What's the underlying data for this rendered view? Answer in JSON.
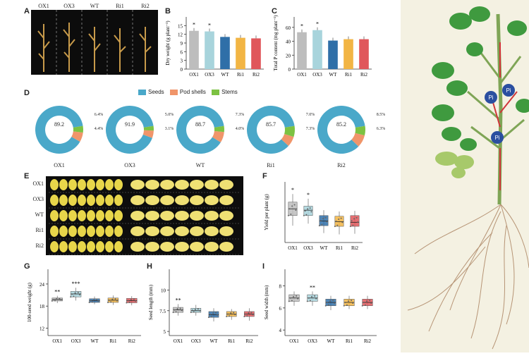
{
  "colors": {
    "OX1": "#bdbdbd",
    "OX3": "#a8d4dc",
    "WT": "#2f6fa8",
    "Ri1": "#f2b544",
    "Ri2": "#e0575b",
    "seeds": "#4aa8c9",
    "pod_shells": "#f0956a",
    "stems": "#7cc242"
  },
  "panel_letters": [
    "A",
    "B",
    "C",
    "D",
    "E",
    "F",
    "G",
    "H",
    "I"
  ],
  "panel_a": {
    "labels": [
      "OX1",
      "OX3",
      "WT",
      "Ri1",
      "Ri2"
    ]
  },
  "legend": {
    "seeds": "Seeds",
    "pod_shells": "Pod shells",
    "stems": "Stems"
  },
  "donuts": [
    {
      "name": "OX1",
      "seeds": "89.2",
      "pod": "6.4%",
      "stem": "4.4%"
    },
    {
      "name": "OX3",
      "seeds": "91.9",
      "pod": "5.0%",
      "stem": "3.1%"
    },
    {
      "name": "WT",
      "seeds": "88.7",
      "pod": "7.3%",
      "stem": "4.0%"
    },
    {
      "name": "Ri1",
      "seeds": "85.7",
      "pod": "7.0%",
      "stem": "7.3%"
    },
    {
      "name": "Ri2",
      "seeds": "85.2",
      "pod": "8.5%",
      "stem": "6.3%"
    }
  ],
  "panel_e": {
    "labels": [
      "OX1",
      "OX3",
      "WT",
      "Ri1",
      "Ri2"
    ]
  },
  "plant": {
    "labels": [
      "Pi",
      "Pi",
      "Pi"
    ]
  },
  "chart_data": [
    {
      "id": "B",
      "type": "bar",
      "categories": [
        "OX1",
        "OX3",
        "WT",
        "Ri1",
        "Ri2"
      ],
      "values": [
        13.2,
        13.0,
        11.1,
        10.8,
        10.6
      ],
      "ylabel": "Dry weight (g plant⁻¹)",
      "yticks": [
        0,
        3,
        6,
        9,
        12,
        15
      ],
      "ylim": [
        0,
        18
      ],
      "sig": [
        "*",
        "*",
        "",
        "",
        ""
      ]
    },
    {
      "id": "C",
      "type": "bar",
      "categories": [
        "OX1",
        "OX3",
        "WT",
        "Ri1",
        "Ri2"
      ],
      "values": [
        53,
        56,
        41,
        43,
        43
      ],
      "ylabel": "Total P content (mg plant⁻¹)",
      "yticks": [
        0,
        20,
        40,
        60
      ],
      "ylim": [
        0,
        75
      ],
      "sig": [
        "*",
        "*",
        "",
        "",
        ""
      ]
    },
    {
      "id": "F",
      "type": "box",
      "categories": [
        "OX1",
        "OX3",
        "WT",
        "Ri1",
        "Ri2"
      ],
      "values": [
        [
          4.5,
          6.0,
          7.0,
          8.0,
          9.2
        ],
        [
          4.8,
          6.0,
          6.8,
          7.4,
          8.5
        ],
        [
          3.4,
          4.5,
          5.2,
          6.0,
          6.8
        ],
        [
          3.2,
          4.4,
          5.1,
          5.9,
          6.6
        ],
        [
          3.3,
          4.4,
          5.0,
          6.0,
          6.7
        ]
      ],
      "ylabel": "Yield per plant (g)",
      "ylim": [
        2,
        11
      ],
      "sig": [
        "*",
        "*",
        "",
        "",
        ""
      ]
    },
    {
      "id": "G",
      "type": "box",
      "categories": [
        "OX1",
        "OX3",
        "WT",
        "Ri1",
        "Ri2"
      ],
      "values": [
        [
          18.8,
          19.4,
          19.8,
          20.2,
          20.8
        ],
        [
          19.5,
          20.5,
          21.3,
          22.0,
          23.0
        ],
        [
          18.5,
          19.0,
          19.5,
          20.0,
          20.6
        ],
        [
          18.3,
          19.0,
          19.6,
          20.2,
          20.9
        ],
        [
          18.2,
          18.9,
          19.5,
          20.1,
          20.7
        ]
      ],
      "ylabel": "100-seed weight (g)",
      "yticks": [
        12,
        18,
        24
      ],
      "ylim": [
        10,
        28
      ],
      "sig": [
        "**",
        "***",
        "",
        "",
        ""
      ]
    },
    {
      "id": "H",
      "type": "box",
      "categories": [
        "OX1",
        "OX3",
        "WT",
        "Ri1",
        "Ri2"
      ],
      "values": [
        [
          6.9,
          7.3,
          7.6,
          7.9,
          8.3
        ],
        [
          6.9,
          7.3,
          7.5,
          7.8,
          8.2
        ],
        [
          6.2,
          6.7,
          7.0,
          7.4,
          7.8
        ],
        [
          6.4,
          6.8,
          7.1,
          7.4,
          7.7
        ],
        [
          6.3,
          6.8,
          7.1,
          7.4,
          7.8
        ]
      ],
      "ylabel": "Seed length (mm)",
      "yticks": [
        5.0,
        7.5,
        10.0
      ],
      "ylim": [
        4.5,
        12.5
      ],
      "sig": [
        "**",
        "",
        "",
        "",
        ""
      ]
    },
    {
      "id": "I",
      "type": "box",
      "categories": [
        "OX1",
        "OX3",
        "WT",
        "Ri1",
        "Ri2"
      ],
      "values": [
        [
          6.2,
          6.6,
          6.9,
          7.2,
          7.5
        ],
        [
          6.2,
          6.6,
          6.9,
          7.2,
          7.5
        ],
        [
          5.8,
          6.2,
          6.5,
          6.8,
          7.1
        ],
        [
          5.9,
          6.2,
          6.5,
          6.8,
          7.1
        ],
        [
          5.9,
          6.2,
          6.5,
          6.8,
          7.1
        ]
      ],
      "ylabel": "Seed width (mm)",
      "yticks": [
        4,
        6,
        8
      ],
      "ylim": [
        3.5,
        9.5
      ],
      "sig": [
        "",
        "**",
        "",
        "",
        ""
      ]
    }
  ]
}
